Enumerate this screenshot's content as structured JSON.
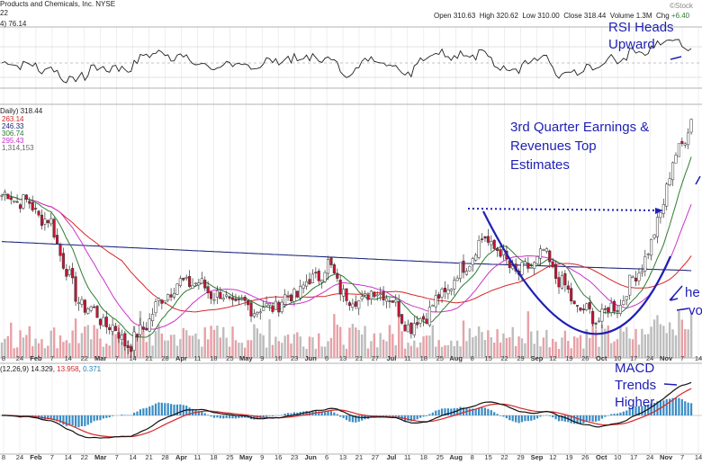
{
  "header": {
    "company": "Products and Chemicals, Inc.",
    "exchange": "NYSE",
    "brand": "©Stock",
    "ohlc": [
      {
        "label": "Open",
        "value": "310.63"
      },
      {
        "label": "High",
        "value": "320.62"
      },
      {
        "label": "Low",
        "value": "310.00"
      },
      {
        "label": "Close",
        "value": "318.44"
      },
      {
        "label": "Volume",
        "value": "1.3M"
      },
      {
        "label": "Chg",
        "value": "+6.40"
      }
    ],
    "sub": "22"
  },
  "rsi": {
    "label": "4) 76.14"
  },
  "price": {
    "label": "Daily) 318.44",
    "ma_values": [
      {
        "value": "263.14",
        "color": "#d62728"
      },
      {
        "value": "246.33",
        "color": "#1f2a80"
      },
      {
        "value": "306.74",
        "color": "#2e7d32"
      },
      {
        "value": "295.43",
        "color": "#cc33cc"
      },
      {
        "value": "1,314,153",
        "color": "#666666"
      }
    ]
  },
  "macd": {
    "label": "(12,26,9) 14.329, 13.958, 0.371",
    "parts": [
      "(12,26,9) 14.329, ",
      "13.958",
      ", ",
      "0.371"
    ]
  },
  "x_axis": {
    "labels": [
      "8",
      "24",
      "Feb",
      "7",
      "14",
      "22",
      "Mar",
      "7",
      "14",
      "21",
      "28",
      "Apr",
      "11",
      "18",
      "25",
      "May",
      "9",
      "16",
      "23",
      "Jun",
      "6",
      "13",
      "21",
      "27",
      "Jul",
      "11",
      "18",
      "25",
      "Aug",
      "8",
      "15",
      "22",
      "29",
      "Sep",
      "12",
      "19",
      "26",
      "Oct",
      "10",
      "17",
      "24",
      "Nov",
      "7",
      "14"
    ]
  },
  "annotations": {
    "rsi": [
      "RSI Heads",
      "Upward"
    ],
    "earnings": [
      "3rd Quarter Earnings &",
      "Revenues Top",
      "Estimates"
    ],
    "volume": [
      "he",
      "vo"
    ],
    "macd": [
      "MACD",
      "Trends",
      "Higher"
    ]
  },
  "colors": {
    "annotation": "#1f1fb4",
    "up": "#ffffff",
    "down": "#cc1133",
    "ma_fast": "#2e7d32",
    "ma_mid": "#cc33cc",
    "ma_slow": "#d62728",
    "ma_long": "#1f2a80"
  },
  "chart_data": {
    "type": "candlestick",
    "ticker_context": "Air Products and Chemicals, Inc. (NYSE) daily",
    "price_ylim": [
      220,
      325
    ],
    "close_anchors": [
      {
        "x": "Jan 18",
        "close": 285
      },
      {
        "x": "Jan 31",
        "close": 275
      },
      {
        "x": "Feb 10",
        "close": 245
      },
      {
        "x": "Feb 28",
        "close": 232
      },
      {
        "x": "Mar 8",
        "close": 225
      },
      {
        "x": "Mar 25",
        "close": 248
      },
      {
        "x": "Apr 4",
        "close": 252
      },
      {
        "x": "Apr 25",
        "close": 242
      },
      {
        "x": "May 9",
        "close": 240
      },
      {
        "x": "May 23",
        "close": 247
      },
      {
        "x": "Jun 6",
        "close": 258
      },
      {
        "x": "Jun 16",
        "close": 243
      },
      {
        "x": "Jul 1",
        "close": 248
      },
      {
        "x": "Jul 14",
        "close": 232
      },
      {
        "x": "Jul 29",
        "close": 247
      },
      {
        "x": "Aug 16",
        "close": 270
      },
      {
        "x": "Aug 31",
        "close": 254
      },
      {
        "x": "Sep 12",
        "close": 263
      },
      {
        "x": "Sep 26",
        "close": 242
      },
      {
        "x": "Oct 5",
        "close": 236
      },
      {
        "x": "Oct 17",
        "close": 243
      },
      {
        "x": "Oct 31",
        "close": 266
      },
      {
        "x": "Nov 10",
        "close": 300
      },
      {
        "x": "Nov 18",
        "close": 318.44
      }
    ]
  }
}
